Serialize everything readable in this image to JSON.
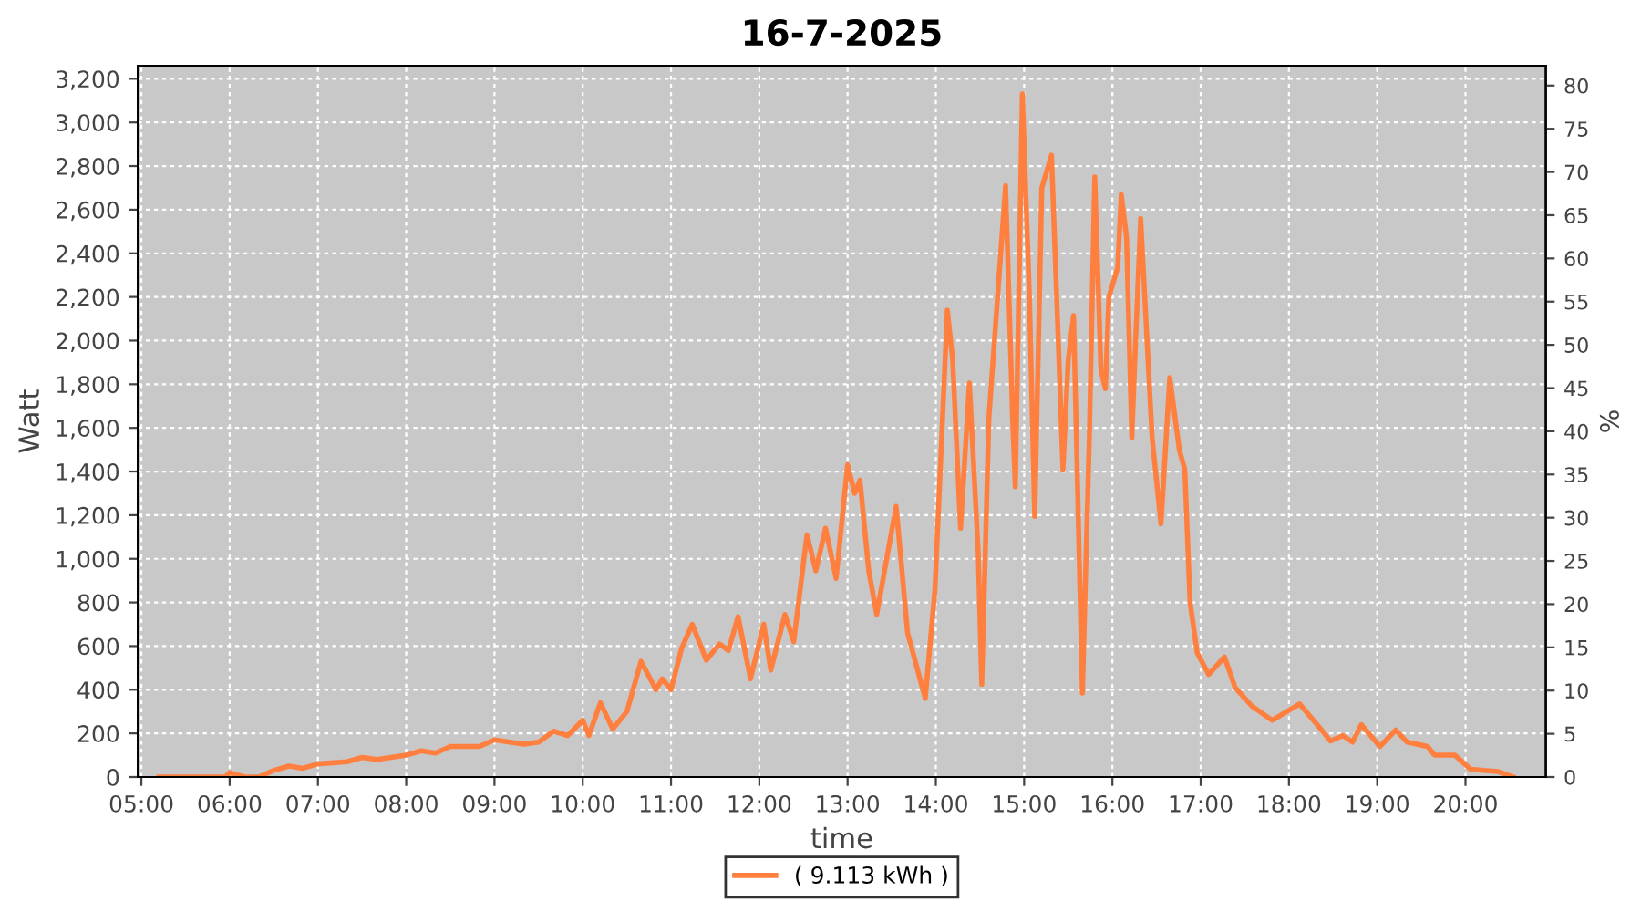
{
  "chart_data": {
    "type": "line",
    "title": "16-7-2025",
    "xlabel": "time",
    "ylabel": "Watt",
    "y2label": "%",
    "xlim": [
      4.96,
      20.91
    ],
    "xticks": [
      {
        "value": 5,
        "label": "05:00"
      },
      {
        "value": 6,
        "label": "06:00"
      },
      {
        "value": 7,
        "label": "07:00"
      },
      {
        "value": 8,
        "label": "08:00"
      },
      {
        "value": 9,
        "label": "09:00"
      },
      {
        "value": 10,
        "label": "10:00"
      },
      {
        "value": 11,
        "label": "11:00"
      },
      {
        "value": 12,
        "label": "12:00"
      },
      {
        "value": 13,
        "label": "13:00"
      },
      {
        "value": 14,
        "label": "14:00"
      },
      {
        "value": 15,
        "label": "15:00"
      },
      {
        "value": 16,
        "label": "16:00"
      },
      {
        "value": 17,
        "label": "17:00"
      },
      {
        "value": 18,
        "label": "18:00"
      },
      {
        "value": 19,
        "label": "19:00"
      },
      {
        "value": 20,
        "label": "20:00"
      }
    ],
    "ylim": [
      0,
      3260
    ],
    "yticks": [
      {
        "value": 0,
        "label": "0"
      },
      {
        "value": 200,
        "label": "200"
      },
      {
        "value": 400,
        "label": "400"
      },
      {
        "value": 600,
        "label": "600"
      },
      {
        "value": 800,
        "label": "800"
      },
      {
        "value": 1000,
        "label": "1,000"
      },
      {
        "value": 1200,
        "label": "1,200"
      },
      {
        "value": 1400,
        "label": "1,400"
      },
      {
        "value": 1600,
        "label": "1,600"
      },
      {
        "value": 1800,
        "label": "1,800"
      },
      {
        "value": 2000,
        "label": "2,000"
      },
      {
        "value": 2200,
        "label": "2,200"
      },
      {
        "value": 2400,
        "label": "2,400"
      },
      {
        "value": 2600,
        "label": "2,600"
      },
      {
        "value": 2800,
        "label": "2,800"
      },
      {
        "value": 3000,
        "label": "3,000"
      },
      {
        "value": 3200,
        "label": "3,200"
      }
    ],
    "y2lim": [
      0,
      82.3
    ],
    "y2ticks": [
      0,
      5,
      10,
      15,
      20,
      25,
      30,
      35,
      40,
      45,
      50,
      55,
      60,
      65,
      70,
      75,
      80
    ],
    "grid": true,
    "legend": "bottom",
    "marker": "none",
    "line_style": "solid",
    "series": [
      {
        "name": "( 9.113 kWh )",
        "color": "#ff7f3f",
        "x": [
          5.2,
          5.95,
          6.0,
          6.17,
          6.33,
          6.5,
          6.67,
          6.83,
          7.0,
          7.33,
          7.5,
          7.67,
          8.0,
          8.17,
          8.33,
          8.5,
          8.83,
          9.0,
          9.33,
          9.5,
          9.67,
          9.83,
          10.0,
          10.07,
          10.2,
          10.34,
          10.5,
          10.66,
          10.83,
          10.9,
          11.0,
          11.12,
          11.24,
          11.4,
          11.55,
          11.65,
          11.76,
          11.9,
          12.05,
          12.13,
          12.29,
          12.39,
          12.54,
          12.64,
          12.75,
          12.87,
          13.0,
          13.08,
          13.14,
          13.24,
          13.33,
          13.55,
          13.68,
          13.88,
          13.99,
          14.13,
          14.19,
          14.28,
          14.38,
          14.48,
          14.52,
          14.6,
          14.79,
          14.87,
          14.9,
          14.98,
          15.06,
          15.12,
          15.2,
          15.31,
          15.44,
          15.5,
          15.56,
          15.66,
          15.74,
          15.8,
          15.87,
          15.92,
          15.96,
          16.06,
          16.1,
          16.16,
          16.22,
          16.26,
          16.32,
          16.45,
          16.55,
          16.65,
          16.76,
          16.82,
          16.88,
          16.96,
          17.09,
          17.27,
          17.39,
          17.58,
          17.81,
          18.12,
          18.33,
          18.47,
          18.61,
          18.72,
          18.82,
          19.03,
          19.21,
          19.34,
          19.57,
          19.65,
          19.88,
          20.06,
          20.37,
          20.54
        ],
        "values": [
          0,
          0,
          20,
          0,
          0,
          30,
          50,
          40,
          60,
          70,
          90,
          80,
          100,
          120,
          110,
          140,
          140,
          170,
          150,
          160,
          210,
          190,
          260,
          190,
          340,
          220,
          300,
          530,
          400,
          450,
          400,
          590,
          700,
          535,
          610,
          580,
          735,
          450,
          700,
          490,
          745,
          620,
          1110,
          945,
          1140,
          910,
          1430,
          1300,
          1360,
          945,
          745,
          1240,
          660,
          360,
          860,
          2140,
          1915,
          1140,
          1805,
          1030,
          425,
          1640,
          2710,
          1640,
          1330,
          3130,
          2200,
          1195,
          2700,
          2850,
          1410,
          1915,
          2115,
          385,
          1580,
          2750,
          1865,
          1780,
          2200,
          2335,
          2670,
          2475,
          1555,
          1970,
          2560,
          1555,
          1160,
          1830,
          1495,
          1410,
          800,
          570,
          470,
          550,
          410,
          325,
          260,
          335,
          235,
          165,
          190,
          160,
          240,
          140,
          215,
          160,
          140,
          100,
          100,
          35,
          25,
          0
        ]
      }
    ]
  }
}
